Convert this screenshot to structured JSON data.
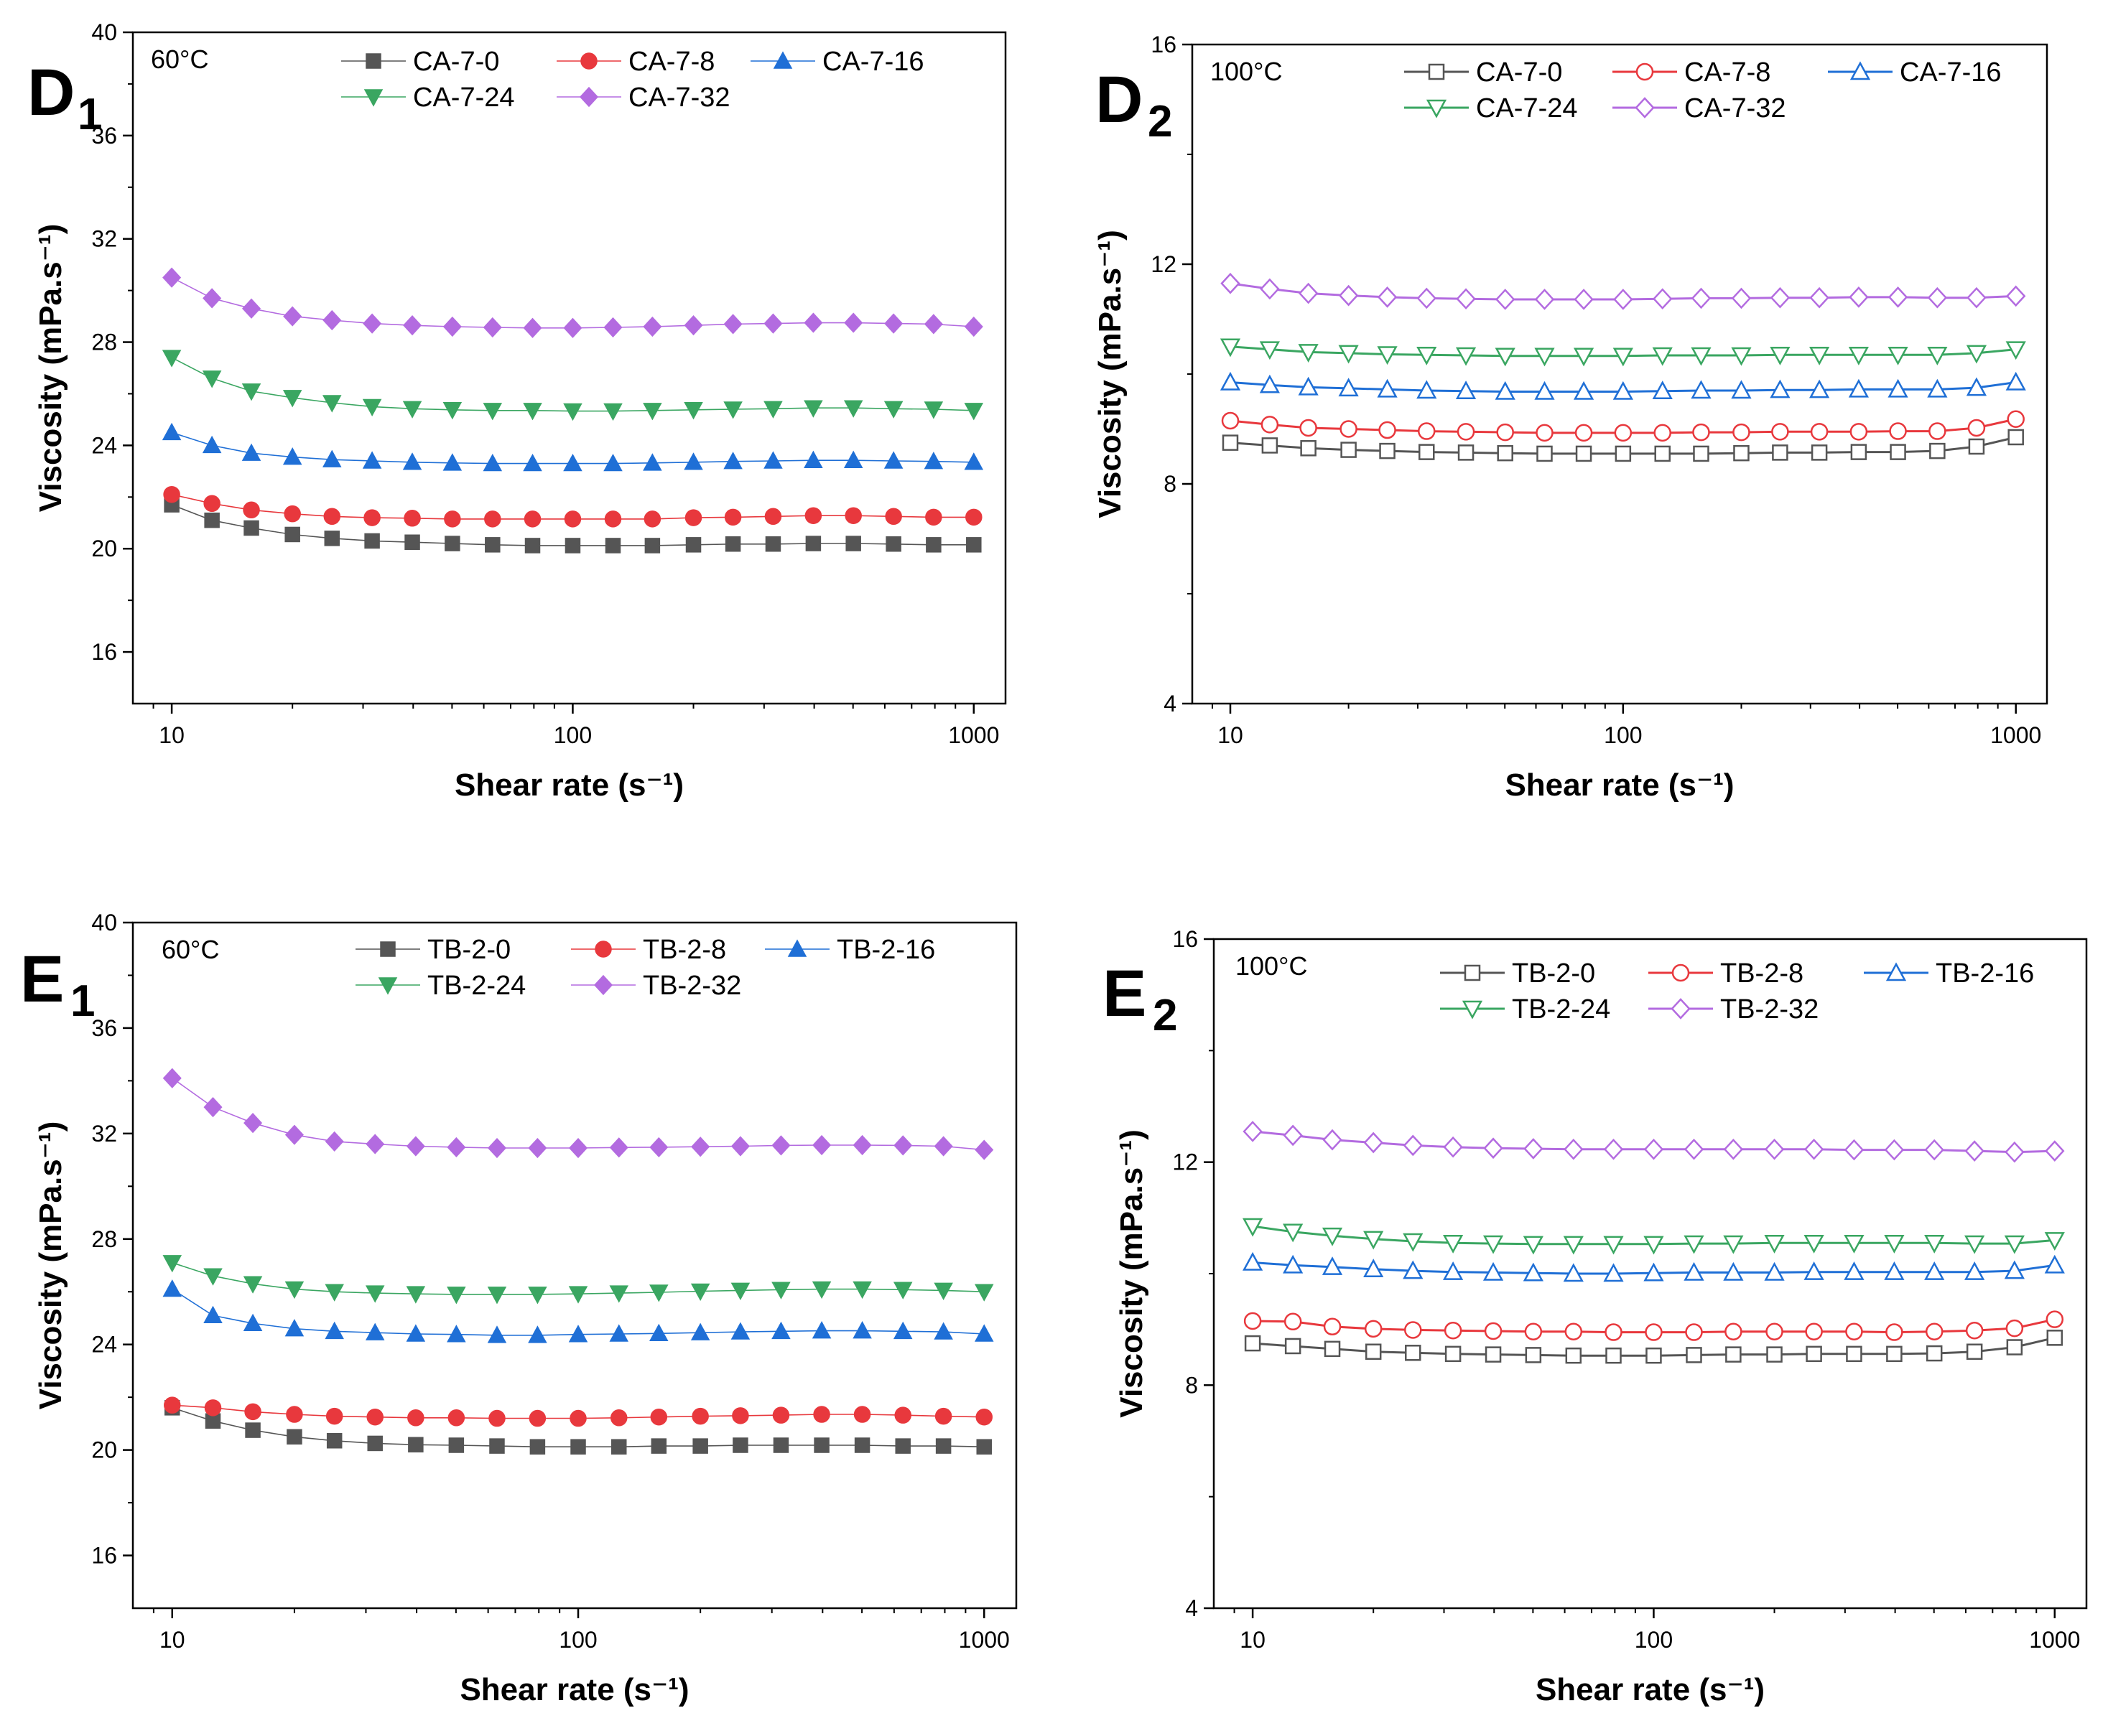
{
  "chart_data": [
    {
      "panel": "D",
      "subscript": "1",
      "type": "line",
      "temperature": "60°C",
      "marker_fill": "filled",
      "xscale": "log",
      "xlabel": "Shear rate",
      "xunit": "(s⁻¹)",
      "ylabel": "Viscosity",
      "yunit": "(mPa.s⁻¹)",
      "xlim": [
        8,
        1200
      ],
      "ylim": [
        14,
        40
      ],
      "xticks": [
        10,
        100,
        1000
      ],
      "yticks": [
        16,
        20,
        24,
        28,
        32,
        36,
        40
      ],
      "x": [
        10,
        12.6,
        15.8,
        20,
        25.1,
        31.6,
        39.8,
        50.1,
        63.1,
        79.4,
        100,
        126,
        158,
        200,
        251,
        316,
        398,
        501,
        631,
        794,
        1000
      ],
      "series": [
        {
          "name": "CA-7-0",
          "color": "#555555",
          "marker": "square",
          "values": [
            21.7,
            21.1,
            20.8,
            20.55,
            20.4,
            20.3,
            20.25,
            20.2,
            20.15,
            20.12,
            20.12,
            20.12,
            20.12,
            20.15,
            20.18,
            20.18,
            20.2,
            20.2,
            20.18,
            20.15,
            20.15
          ]
        },
        {
          "name": "CA-7-8",
          "color": "#e8383d",
          "marker": "circle",
          "values": [
            22.1,
            21.75,
            21.5,
            21.35,
            21.25,
            21.2,
            21.18,
            21.15,
            21.15,
            21.15,
            21.15,
            21.15,
            21.15,
            21.2,
            21.22,
            21.25,
            21.28,
            21.28,
            21.25,
            21.22,
            21.22
          ]
        },
        {
          "name": "CA-7-16",
          "color": "#1f6fd6",
          "marker": "triangle-up",
          "values": [
            24.5,
            24.0,
            23.7,
            23.55,
            23.45,
            23.4,
            23.35,
            23.32,
            23.3,
            23.3,
            23.3,
            23.3,
            23.32,
            23.35,
            23.38,
            23.4,
            23.42,
            23.42,
            23.4,
            23.38,
            23.35
          ]
        },
        {
          "name": "CA-7-24",
          "color": "#3aa661",
          "marker": "triangle-down",
          "values": [
            27.4,
            26.6,
            26.1,
            25.85,
            25.65,
            25.5,
            25.42,
            25.38,
            25.35,
            25.35,
            25.33,
            25.33,
            25.35,
            25.38,
            25.4,
            25.42,
            25.45,
            25.45,
            25.42,
            25.4,
            25.35
          ]
        },
        {
          "name": "CA-7-32",
          "color": "#b36be0",
          "marker": "diamond",
          "values": [
            30.5,
            29.7,
            29.3,
            29.0,
            28.85,
            28.72,
            28.65,
            28.6,
            28.57,
            28.55,
            28.55,
            28.57,
            28.6,
            28.65,
            28.7,
            28.72,
            28.75,
            28.75,
            28.72,
            28.7,
            28.6
          ]
        }
      ]
    },
    {
      "panel": "D",
      "subscript": "2",
      "type": "line",
      "temperature": "100°C",
      "marker_fill": "open",
      "xscale": "log",
      "xlabel": "Shear rate",
      "xunit": "(s⁻¹)",
      "ylabel": "Viscosity",
      "yunit": "(mPa.s⁻¹)",
      "xlim": [
        8,
        1200
      ],
      "ylim": [
        4,
        16
      ],
      "xticks": [
        10,
        100,
        1000
      ],
      "yticks": [
        4,
        8,
        12,
        16
      ],
      "x": [
        10,
        12.6,
        15.8,
        20,
        25.1,
        31.6,
        39.8,
        50.1,
        63.1,
        79.4,
        100,
        126,
        158,
        200,
        251,
        316,
        398,
        501,
        631,
        794,
        1000
      ],
      "series": [
        {
          "name": "CA-7-0",
          "color": "#555555",
          "marker": "square",
          "values": [
            8.75,
            8.7,
            8.65,
            8.62,
            8.6,
            8.58,
            8.57,
            8.56,
            8.55,
            8.55,
            8.55,
            8.55,
            8.55,
            8.56,
            8.57,
            8.57,
            8.58,
            8.58,
            8.6,
            8.68,
            8.85
          ]
        },
        {
          "name": "CA-7-8",
          "color": "#e8383d",
          "marker": "circle",
          "values": [
            9.15,
            9.08,
            9.02,
            9.0,
            8.98,
            8.96,
            8.95,
            8.94,
            8.93,
            8.93,
            8.93,
            8.93,
            8.94,
            8.94,
            8.95,
            8.95,
            8.95,
            8.96,
            8.96,
            9.02,
            9.18
          ]
        },
        {
          "name": "CA-7-16",
          "color": "#1f6fd6",
          "marker": "triangle-up",
          "values": [
            9.85,
            9.8,
            9.76,
            9.74,
            9.72,
            9.7,
            9.69,
            9.68,
            9.68,
            9.68,
            9.68,
            9.69,
            9.7,
            9.7,
            9.71,
            9.71,
            9.72,
            9.72,
            9.72,
            9.75,
            9.85
          ]
        },
        {
          "name": "CA-7-24",
          "color": "#3aa661",
          "marker": "triangle-down",
          "values": [
            10.5,
            10.45,
            10.4,
            10.38,
            10.36,
            10.35,
            10.34,
            10.33,
            10.33,
            10.33,
            10.33,
            10.34,
            10.34,
            10.34,
            10.35,
            10.35,
            10.35,
            10.35,
            10.35,
            10.38,
            10.45
          ]
        },
        {
          "name": "CA-7-32",
          "color": "#b36be0",
          "marker": "diamond",
          "values": [
            11.65,
            11.55,
            11.47,
            11.43,
            11.4,
            11.38,
            11.37,
            11.36,
            11.36,
            11.36,
            11.36,
            11.37,
            11.38,
            11.38,
            11.39,
            11.39,
            11.4,
            11.4,
            11.39,
            11.39,
            11.42
          ]
        }
      ]
    },
    {
      "panel": "E",
      "subscript": "1",
      "type": "line",
      "temperature": "60°C",
      "marker_fill": "filled",
      "xscale": "log",
      "xlabel": "Shear rate",
      "xunit": "(s⁻¹)",
      "ylabel": "Viscosity",
      "yunit": "(mPa.s⁻¹)",
      "xlim": [
        8,
        1200
      ],
      "ylim": [
        14,
        40
      ],
      "xticks": [
        10,
        100,
        1000
      ],
      "yticks": [
        16,
        20,
        24,
        28,
        32,
        36,
        40
      ],
      "x": [
        10,
        12.6,
        15.8,
        20,
        25.1,
        31.6,
        39.8,
        50.1,
        63.1,
        79.4,
        100,
        126,
        158,
        200,
        251,
        316,
        398,
        501,
        631,
        794,
        1000
      ],
      "series": [
        {
          "name": "TB-2-0",
          "color": "#555555",
          "marker": "square",
          "values": [
            21.6,
            21.1,
            20.75,
            20.5,
            20.35,
            20.25,
            20.2,
            20.18,
            20.15,
            20.12,
            20.12,
            20.12,
            20.15,
            20.15,
            20.18,
            20.18,
            20.18,
            20.18,
            20.15,
            20.15,
            20.12
          ]
        },
        {
          "name": "TB-2-8",
          "color": "#e8383d",
          "marker": "circle",
          "values": [
            21.7,
            21.6,
            21.45,
            21.35,
            21.28,
            21.25,
            21.22,
            21.22,
            21.2,
            21.2,
            21.2,
            21.22,
            21.25,
            21.28,
            21.3,
            21.32,
            21.35,
            21.35,
            21.32,
            21.28,
            21.25
          ]
        },
        {
          "name": "TB-2-16",
          "color": "#1f6fd6",
          "marker": "triangle-up",
          "values": [
            26.1,
            25.1,
            24.8,
            24.6,
            24.5,
            24.45,
            24.4,
            24.38,
            24.35,
            24.35,
            24.38,
            24.4,
            24.42,
            24.45,
            24.48,
            24.5,
            24.52,
            24.52,
            24.5,
            24.48,
            24.4
          ]
        },
        {
          "name": "TB-2-24",
          "color": "#3aa661",
          "marker": "triangle-down",
          "values": [
            27.1,
            26.6,
            26.3,
            26.1,
            26.0,
            25.95,
            25.92,
            25.9,
            25.9,
            25.9,
            25.92,
            25.95,
            25.98,
            26.02,
            26.05,
            26.08,
            26.1,
            26.1,
            26.08,
            26.05,
            26.0
          ]
        },
        {
          "name": "TB-2-32",
          "color": "#b36be0",
          "marker": "diamond",
          "values": [
            34.1,
            33.0,
            32.4,
            31.95,
            31.7,
            31.6,
            31.52,
            31.48,
            31.45,
            31.45,
            31.45,
            31.47,
            31.48,
            31.5,
            31.52,
            31.55,
            31.56,
            31.56,
            31.55,
            31.52,
            31.38
          ]
        }
      ]
    },
    {
      "panel": "E",
      "subscript": "2",
      "type": "line",
      "temperature": "100°C",
      "marker_fill": "open",
      "xscale": "log",
      "xlabel": "Shear rate",
      "xunit": "(s⁻¹)",
      "ylabel": "Viscosity",
      "yunit": "(mPa.s⁻¹)",
      "xlim": [
        8,
        1200
      ],
      "ylim": [
        4,
        16
      ],
      "xticks": [
        10,
        100,
        1000
      ],
      "yticks": [
        4,
        8,
        12,
        16
      ],
      "x": [
        10,
        12.6,
        15.8,
        20,
        25.1,
        31.6,
        39.8,
        50.1,
        63.1,
        79.4,
        100,
        126,
        158,
        200,
        251,
        316,
        398,
        501,
        631,
        794,
        1000
      ],
      "series": [
        {
          "name": "TB-2-0",
          "color": "#555555",
          "marker": "square",
          "values": [
            8.75,
            8.7,
            8.65,
            8.6,
            8.58,
            8.56,
            8.55,
            8.54,
            8.53,
            8.53,
            8.53,
            8.54,
            8.55,
            8.55,
            8.56,
            8.56,
            8.56,
            8.57,
            8.6,
            8.68,
            8.85
          ]
        },
        {
          "name": "TB-2-8",
          "color": "#e8383d",
          "marker": "circle",
          "values": [
            9.15,
            9.14,
            9.05,
            9.01,
            8.99,
            8.98,
            8.97,
            8.96,
            8.96,
            8.95,
            8.95,
            8.95,
            8.96,
            8.96,
            8.96,
            8.96,
            8.95,
            8.96,
            8.98,
            9.02,
            9.18
          ]
        },
        {
          "name": "TB-2-16",
          "color": "#1f6fd6",
          "marker": "triangle-up",
          "values": [
            10.2,
            10.15,
            10.12,
            10.08,
            10.05,
            10.03,
            10.02,
            10.01,
            10.0,
            10.0,
            10.01,
            10.02,
            10.02,
            10.02,
            10.03,
            10.03,
            10.03,
            10.03,
            10.03,
            10.05,
            10.15
          ]
        },
        {
          "name": "TB-2-24",
          "color": "#3aa661",
          "marker": "triangle-down",
          "values": [
            10.85,
            10.75,
            10.68,
            10.62,
            10.58,
            10.55,
            10.54,
            10.53,
            10.53,
            10.53,
            10.53,
            10.54,
            10.54,
            10.55,
            10.55,
            10.55,
            10.55,
            10.55,
            10.54,
            10.54,
            10.6
          ]
        },
        {
          "name": "TB-2-32",
          "color": "#b36be0",
          "marker": "diamond",
          "values": [
            12.55,
            12.48,
            12.4,
            12.35,
            12.3,
            12.27,
            12.25,
            12.24,
            12.23,
            12.23,
            12.23,
            12.23,
            12.23,
            12.23,
            12.23,
            12.22,
            12.22,
            12.22,
            12.2,
            12.18,
            12.2
          ]
        }
      ]
    }
  ]
}
